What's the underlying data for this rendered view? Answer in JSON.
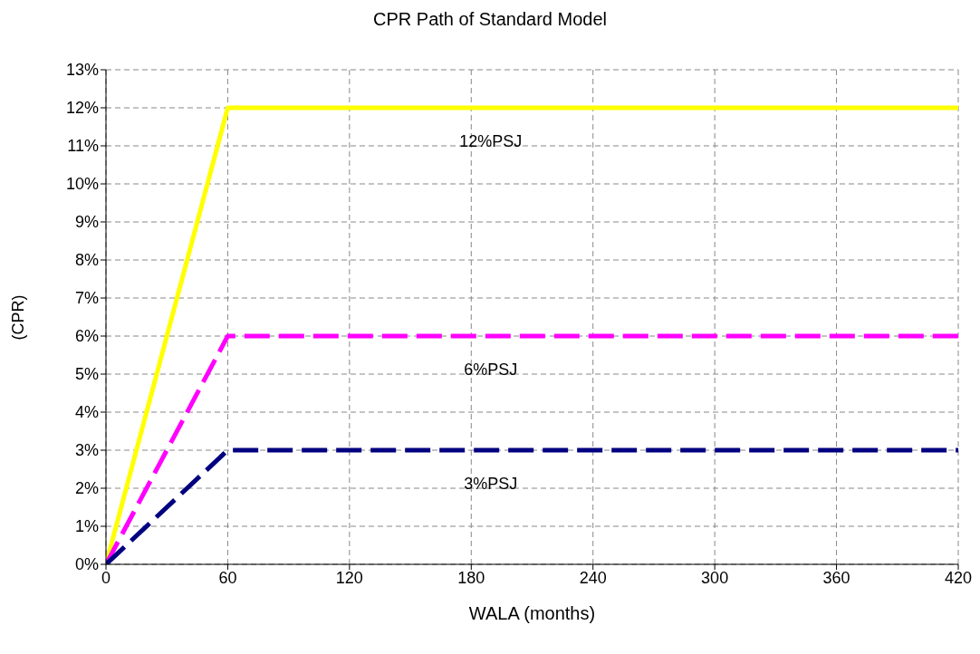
{
  "chart_data": {
    "type": "line",
    "title": "CPR Path of Standard Model",
    "xlabel": "WALA (months)",
    "ylabel": "(CPR)",
    "xlim": [
      0,
      420
    ],
    "xticks": [
      0,
      60,
      120,
      180,
      240,
      300,
      360,
      420
    ],
    "ylim": [
      0,
      13
    ],
    "yticks": [
      {
        "value": 0,
        "label": "0%"
      },
      {
        "value": 1,
        "label": "1%"
      },
      {
        "value": 2,
        "label": "2%"
      },
      {
        "value": 3,
        "label": "3%"
      },
      {
        "value": 4,
        "label": "4%"
      },
      {
        "value": 5,
        "label": "5%"
      },
      {
        "value": 6,
        "label": "6%"
      },
      {
        "value": 7,
        "label": "7%"
      },
      {
        "value": 8,
        "label": "8%"
      },
      {
        "value": 9,
        "label": "9%"
      },
      {
        "value": 10,
        "label": "10%"
      },
      {
        "value": 11,
        "label": "11%"
      },
      {
        "value": 12,
        "label": "12%"
      },
      {
        "value": 13,
        "label": "13%"
      }
    ],
    "grid": true,
    "marker": "none",
    "series": [
      {
        "name": "12%PSJ",
        "color": "#ffff00",
        "x": [
          0,
          60,
          420
        ],
        "values": [
          0,
          12,
          12
        ],
        "line_style": "solid"
      },
      {
        "name": "6%PSJ",
        "color": "#ff00ff",
        "x": [
          0,
          60,
          420
        ],
        "values": [
          0,
          6,
          6
        ],
        "line_style": "dashed"
      },
      {
        "name": "3%PSJ",
        "color": "#000080",
        "x": [
          0,
          60,
          420
        ],
        "values": [
          0,
          3,
          3
        ],
        "line_style": "dashed"
      }
    ]
  }
}
